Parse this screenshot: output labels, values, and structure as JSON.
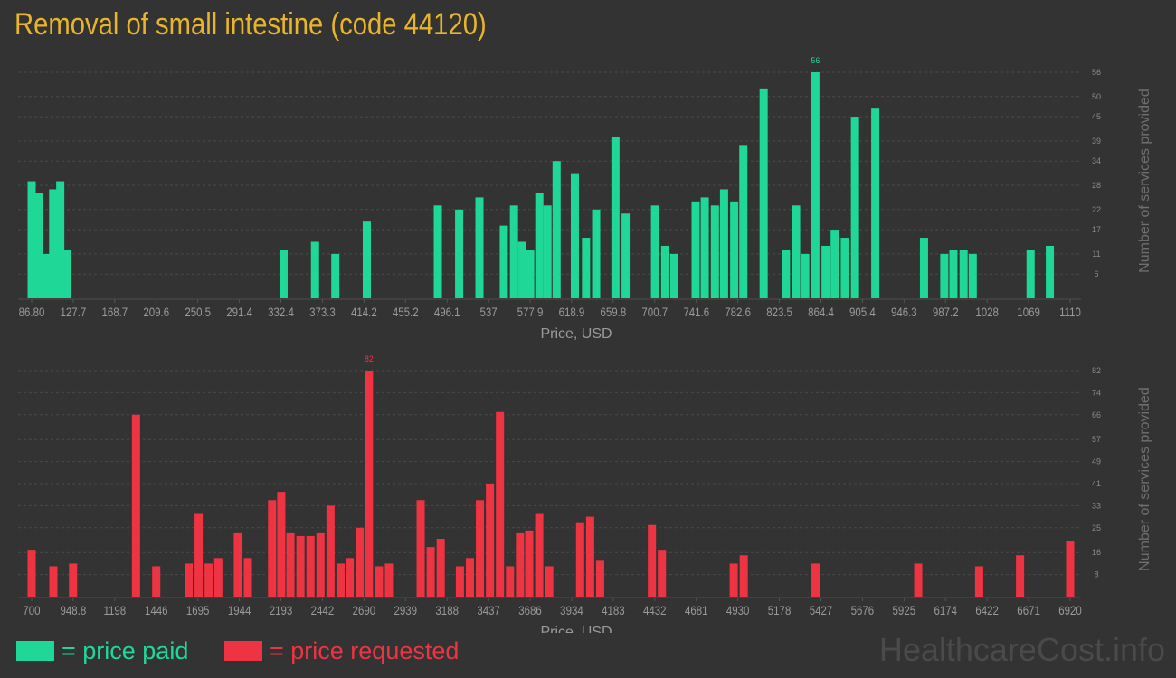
{
  "title": "Removal of small intestine (code 44120)",
  "legend": {
    "paid": "= price paid",
    "requested": "= price requested"
  },
  "watermark": "HealthcareCost.info",
  "colors": {
    "paid": "#1fd897",
    "requested": "#ee3442",
    "title": "#e8b52a",
    "axis_text": "#9a9a9a",
    "grid": "#4a4a4a",
    "background": "#333333"
  },
  "chart_data": [
    {
      "type": "bar",
      "name": "price paid",
      "xlabel": "Price, USD",
      "ylabel": "Number of services provided",
      "ylim": [
        0,
        56
      ],
      "yticks": [
        6,
        11,
        17,
        22,
        28,
        34,
        39,
        45,
        50,
        56
      ],
      "xticks": [
        "86.80",
        "127.7",
        "168.7",
        "209.6",
        "250.5",
        "291.4",
        "332.4",
        "373.3",
        "414.2",
        "455.2",
        "496.1",
        "537",
        "577.9",
        "618.9",
        "659.8",
        "700.7",
        "741.6",
        "782.6",
        "823.5",
        "864.4",
        "905.4",
        "946.3",
        "987.2",
        "1028",
        "1069",
        "1110"
      ],
      "xrange": [
        86.8,
        1110
      ],
      "max_label": "56",
      "points": [
        {
          "x": 86.8,
          "y": 29
        },
        {
          "x": 94,
          "y": 26
        },
        {
          "x": 101,
          "y": 11
        },
        {
          "x": 108,
          "y": 27
        },
        {
          "x": 115,
          "y": 29
        },
        {
          "x": 122,
          "y": 12
        },
        {
          "x": 335,
          "y": 12
        },
        {
          "x": 366,
          "y": 14
        },
        {
          "x": 386,
          "y": 11
        },
        {
          "x": 417,
          "y": 19
        },
        {
          "x": 487,
          "y": 23
        },
        {
          "x": 508,
          "y": 22
        },
        {
          "x": 528,
          "y": 25
        },
        {
          "x": 552,
          "y": 18
        },
        {
          "x": 562,
          "y": 23
        },
        {
          "x": 570,
          "y": 14
        },
        {
          "x": 578,
          "y": 12
        },
        {
          "x": 587,
          "y": 26
        },
        {
          "x": 595,
          "y": 23
        },
        {
          "x": 604,
          "y": 34
        },
        {
          "x": 622,
          "y": 31
        },
        {
          "x": 633,
          "y": 15
        },
        {
          "x": 643,
          "y": 22
        },
        {
          "x": 662,
          "y": 40
        },
        {
          "x": 672,
          "y": 21
        },
        {
          "x": 701,
          "y": 23
        },
        {
          "x": 711,
          "y": 13
        },
        {
          "x": 720,
          "y": 11
        },
        {
          "x": 741,
          "y": 24
        },
        {
          "x": 750,
          "y": 25
        },
        {
          "x": 760,
          "y": 23
        },
        {
          "x": 769,
          "y": 27
        },
        {
          "x": 779,
          "y": 24
        },
        {
          "x": 788,
          "y": 38
        },
        {
          "x": 808,
          "y": 52
        },
        {
          "x": 830,
          "y": 12
        },
        {
          "x": 840,
          "y": 23
        },
        {
          "x": 849,
          "y": 11
        },
        {
          "x": 859,
          "y": 56
        },
        {
          "x": 869,
          "y": 13
        },
        {
          "x": 878,
          "y": 17
        },
        {
          "x": 888,
          "y": 15
        },
        {
          "x": 898,
          "y": 45
        },
        {
          "x": 918,
          "y": 47
        },
        {
          "x": 966,
          "y": 15
        },
        {
          "x": 986,
          "y": 11
        },
        {
          "x": 995,
          "y": 12
        },
        {
          "x": 1005,
          "y": 12
        },
        {
          "x": 1014,
          "y": 11
        },
        {
          "x": 1071,
          "y": 12
        },
        {
          "x": 1090,
          "y": 13
        }
      ]
    },
    {
      "type": "bar",
      "name": "price requested",
      "xlabel": "Price, USD",
      "ylabel": "Number of services provided",
      "ylim": [
        0,
        82
      ],
      "yticks": [
        8,
        16,
        25,
        33,
        41,
        49,
        57,
        66,
        74,
        82
      ],
      "xticks": [
        "700",
        "948.8",
        "1198",
        "1446",
        "1695",
        "1944",
        "2193",
        "2442",
        "2690",
        "2939",
        "3188",
        "3437",
        "3686",
        "3934",
        "4183",
        "4432",
        "4681",
        "4930",
        "5178",
        "5427",
        "5676",
        "5925",
        "6174",
        "6422",
        "6671",
        "6920"
      ],
      "xrange": [
        700,
        6920
      ],
      "max_label": "82",
      "points": [
        {
          "x": 700,
          "y": 17
        },
        {
          "x": 830,
          "y": 11
        },
        {
          "x": 948,
          "y": 12
        },
        {
          "x": 1325,
          "y": 66
        },
        {
          "x": 1446,
          "y": 11
        },
        {
          "x": 1640,
          "y": 12
        },
        {
          "x": 1700,
          "y": 30
        },
        {
          "x": 1760,
          "y": 12
        },
        {
          "x": 1818,
          "y": 14
        },
        {
          "x": 1935,
          "y": 23
        },
        {
          "x": 1995,
          "y": 14
        },
        {
          "x": 2140,
          "y": 35
        },
        {
          "x": 2195,
          "y": 38
        },
        {
          "x": 2250,
          "y": 23
        },
        {
          "x": 2310,
          "y": 22
        },
        {
          "x": 2370,
          "y": 22
        },
        {
          "x": 2430,
          "y": 23
        },
        {
          "x": 2490,
          "y": 33
        },
        {
          "x": 2550,
          "y": 12
        },
        {
          "x": 2605,
          "y": 14
        },
        {
          "x": 2665,
          "y": 25
        },
        {
          "x": 2720,
          "y": 82
        },
        {
          "x": 2780,
          "y": 11
        },
        {
          "x": 2840,
          "y": 12
        },
        {
          "x": 3030,
          "y": 35
        },
        {
          "x": 3090,
          "y": 18
        },
        {
          "x": 3150,
          "y": 21
        },
        {
          "x": 3265,
          "y": 11
        },
        {
          "x": 3325,
          "y": 14
        },
        {
          "x": 3385,
          "y": 35
        },
        {
          "x": 3445,
          "y": 41
        },
        {
          "x": 3505,
          "y": 67
        },
        {
          "x": 3565,
          "y": 11
        },
        {
          "x": 3625,
          "y": 23
        },
        {
          "x": 3680,
          "y": 24
        },
        {
          "x": 3740,
          "y": 30
        },
        {
          "x": 3800,
          "y": 11
        },
        {
          "x": 3985,
          "y": 27
        },
        {
          "x": 4045,
          "y": 29
        },
        {
          "x": 4105,
          "y": 13
        },
        {
          "x": 4415,
          "y": 26
        },
        {
          "x": 4475,
          "y": 17
        },
        {
          "x": 4905,
          "y": 12
        },
        {
          "x": 4965,
          "y": 15
        },
        {
          "x": 5395,
          "y": 12
        },
        {
          "x": 6010,
          "y": 12
        },
        {
          "x": 6375,
          "y": 11
        },
        {
          "x": 6620,
          "y": 15
        },
        {
          "x": 6920,
          "y": 20
        }
      ]
    }
  ]
}
